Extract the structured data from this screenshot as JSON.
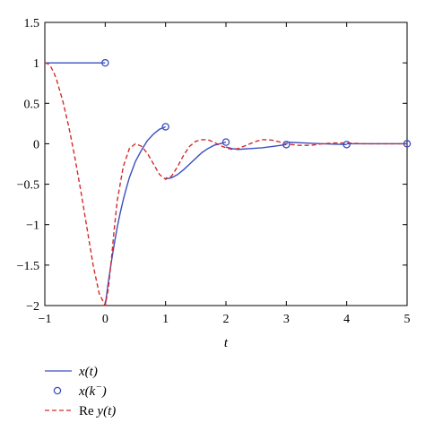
{
  "chart_data": {
    "type": "line",
    "title": "",
    "xlabel": "t",
    "ylabel": "",
    "xlim": [
      -1,
      5
    ],
    "ylim": [
      -2,
      1.5
    ],
    "xticks": [
      -1,
      0,
      1,
      2,
      3,
      4,
      5
    ],
    "yticks": [
      -2,
      -1.5,
      -1,
      -0.5,
      0,
      0.5,
      1,
      1.5
    ],
    "xtick_labels": [
      "−1",
      "0",
      "1",
      "2",
      "3",
      "4",
      "5"
    ],
    "ytick_labels": [
      "−2",
      "−1.5",
      "−1",
      "−0.5",
      "0",
      "0.5",
      "1",
      "1.5"
    ],
    "grid": false,
    "legend_position": "below-left",
    "series": [
      {
        "name": "x(t)",
        "legend_label": "x(t)",
        "style": "solid",
        "color": "#3a4fc0",
        "segments": [
          {
            "x": [
              -1,
              0
            ],
            "y": [
              1,
              1
            ]
          },
          {
            "x": [
              0,
              0.05,
              0.1,
              0.15,
              0.2,
              0.25,
              0.3,
              0.35,
              0.4,
              0.5,
              0.6,
              0.7,
              0.8,
              0.9,
              1.0
            ],
            "y": [
              -2,
              -1.72,
              -1.47,
              -1.24,
              -1.03,
              -0.85,
              -0.69,
              -0.55,
              -0.42,
              -0.22,
              -0.08,
              0.04,
              0.12,
              0.18,
              0.21
            ]
          },
          {
            "x": [
              1.0,
              1.05,
              1.1,
              1.2,
              1.3,
              1.4,
              1.5,
              1.6,
              1.7,
              1.8,
              1.9,
              2.0
            ],
            "y": [
              -0.42,
              -0.43,
              -0.42,
              -0.38,
              -0.32,
              -0.25,
              -0.18,
              -0.11,
              -0.06,
              -0.02,
              0.0,
              0.02
            ]
          },
          {
            "x": [
              2.0,
              2.1,
              2.2,
              2.4,
              2.6,
              2.8,
              3.0
            ],
            "y": [
              -0.04,
              -0.06,
              -0.07,
              -0.06,
              -0.05,
              -0.03,
              -0.01
            ]
          },
          {
            "x": [
              3.0,
              3.3,
              3.6,
              4.0
            ],
            "y": [
              0.02,
              0.01,
              0.0,
              -0.01
            ]
          },
          {
            "x": [
              4.0,
              4.5,
              5.0
            ],
            "y": [
              0.0,
              0.0,
              0.0
            ]
          }
        ]
      },
      {
        "name": "x(k^-)",
        "legend_label_main": "x(k",
        "legend_label_sup": "−",
        "legend_label_end": ")",
        "style": "markers",
        "marker": "circle",
        "color": "#3a4fc0",
        "x": [
          0,
          1,
          2,
          3,
          4,
          5
        ],
        "y": [
          1,
          0.21,
          0.02,
          -0.01,
          -0.01,
          0.0
        ]
      },
      {
        "name": "Re y(t)",
        "legend_label_re": "Re",
        "legend_label_rest": "y(t)",
        "style": "dashed",
        "color": "#d62a2a",
        "x": [
          -1,
          -0.95,
          -0.9,
          -0.85,
          -0.8,
          -0.7,
          -0.6,
          -0.5,
          -0.4,
          -0.3,
          -0.2,
          -0.1,
          0,
          0.05,
          0.1,
          0.15,
          0.2,
          0.3,
          0.4,
          0.5,
          0.6,
          0.7,
          0.8,
          0.9,
          1.0,
          1.1,
          1.2,
          1.3,
          1.4,
          1.5,
          1.6,
          1.7,
          1.8,
          1.9,
          2.0,
          2.1,
          2.2,
          2.3,
          2.4,
          2.5,
          2.6,
          2.7,
          2.8,
          2.9,
          3.0,
          3.2,
          3.4,
          3.6,
          3.8,
          4.0,
          4.3,
          4.6,
          5.0
        ],
        "y": [
          1,
          0.99,
          0.95,
          0.88,
          0.78,
          0.52,
          0.2,
          -0.18,
          -0.6,
          -1.05,
          -1.5,
          -1.85,
          -2,
          -1.8,
          -1.45,
          -1.05,
          -0.7,
          -0.28,
          -0.06,
          0.0,
          -0.03,
          -0.12,
          -0.25,
          -0.38,
          -0.44,
          -0.4,
          -0.28,
          -0.14,
          -0.03,
          0.03,
          0.05,
          0.05,
          0.02,
          -0.02,
          -0.05,
          -0.07,
          -0.06,
          -0.03,
          0.0,
          0.03,
          0.05,
          0.05,
          0.04,
          0.02,
          0.0,
          -0.02,
          -0.02,
          0.0,
          0.01,
          0.01,
          0.0,
          0.0,
          0.0
        ]
      }
    ]
  },
  "colors": {
    "blue": "#3a4fc0",
    "red": "#d62a2a"
  }
}
